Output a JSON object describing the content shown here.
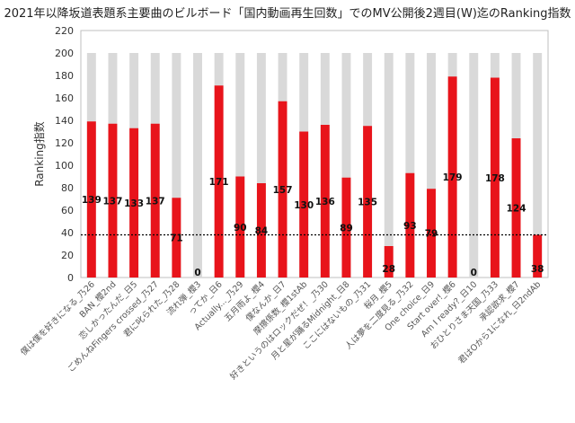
{
  "chart_data": {
    "type": "bar",
    "title": "2021年以降坂道表題系主要曲のビルボード「国内動画再生回数」でのMV公開後2週目(W)迄のRanking指数",
    "xlabel": "",
    "ylabel": "Ranking指数",
    "ylim": [
      0,
      220
    ],
    "yticks": [
      0,
      20,
      40,
      60,
      80,
      100,
      120,
      140,
      160,
      180,
      200,
      220
    ],
    "grid": false,
    "background_bar_value": 200,
    "reference_line": 38,
    "categories": [
      "僕は僕を好きになる_乃26",
      "BAN_櫻2nd",
      "恋しかったんだ_日5",
      "ごめんねFingers crossed_乃27",
      "君に叱られた_乃28",
      "流れ弾_櫻3",
      "ってか_日6",
      "Actually..._乃29",
      "五月雨よ_櫻4",
      "僕なんか_日7",
      "摩擦係数_櫻1stAb",
      "好きというのはロックだぜ！_乃30",
      "月と星が踊るMidnight_日8",
      "ここにはないもの_乃31",
      "桜月_櫻5",
      "人は夢を二度見る_乃32",
      "One choice_日9",
      "Start over!_櫻6",
      "Am I ready?_日10",
      "おひとりさま天国_乃33",
      "承認欲求_櫻7",
      "君はOから1になれ_日2ndAb"
    ],
    "values": [
      139,
      137,
      133,
      137,
      71,
      0,
      171,
      90,
      84,
      157,
      130,
      136,
      89,
      135,
      28,
      93,
      79,
      179,
      0,
      178,
      124,
      38
    ],
    "colors": {
      "bar": "#e8141b",
      "background_bar": "#d9d9d9",
      "reference_line": "#000000",
      "axis": "#bfbfbf"
    }
  }
}
